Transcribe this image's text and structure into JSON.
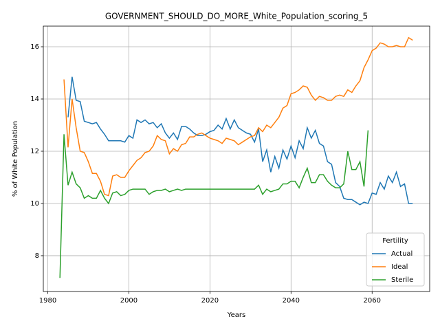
{
  "chart_data": {
    "type": "line",
    "title": "GOVERNMENT_SHOULD_DO_MORE_White_Population_scoring_5",
    "xlabel": "Years",
    "ylabel": "% of White Population",
    "x": [
      1983,
      1984,
      1985,
      1986,
      1987,
      1988,
      1989,
      1990,
      1991,
      1992,
      1993,
      1994,
      1995,
      1996,
      1997,
      1998,
      1999,
      2000,
      2001,
      2002,
      2003,
      2004,
      2005,
      2006,
      2007,
      2008,
      2009,
      2010,
      2011,
      2012,
      2013,
      2014,
      2015,
      2016,
      2017,
      2018,
      2019,
      2020,
      2021,
      2022,
      2023,
      2024,
      2025,
      2026,
      2027,
      2028,
      2029,
      2030,
      2031,
      2032,
      2033,
      2034,
      2035,
      2036,
      2037,
      2038,
      2039,
      2040,
      2041,
      2042,
      2043,
      2044,
      2045,
      2046,
      2047,
      2048,
      2049,
      2050,
      2051,
      2052,
      2053,
      2054,
      2055,
      2056,
      2057,
      2058,
      2059,
      2060,
      2061,
      2062,
      2063,
      2064,
      2065,
      2066,
      2067,
      2068,
      2069,
      2070
    ],
    "series": [
      {
        "name": "Actual",
        "color": "#1f77b4",
        "values": [
          null,
          null,
          13.3,
          14.85,
          13.95,
          13.9,
          13.15,
          13.1,
          13.05,
          13.1,
          12.85,
          12.65,
          12.4,
          12.4,
          12.4,
          12.4,
          12.35,
          12.6,
          12.5,
          13.2,
          13.1,
          13.2,
          13.05,
          13.1,
          12.9,
          13.05,
          12.7,
          12.5,
          12.7,
          12.45,
          12.95,
          12.95,
          12.85,
          12.7,
          12.6,
          12.6,
          12.65,
          12.75,
          12.8,
          13.0,
          12.85,
          13.25,
          12.85,
          13.2,
          12.9,
          12.8,
          12.7,
          12.65,
          12.35,
          12.85,
          11.6,
          12.05,
          11.2,
          11.8,
          11.35,
          12.05,
          11.7,
          12.2,
          11.75,
          12.4,
          12.1,
          12.9,
          12.5,
          12.8,
          12.3,
          12.2,
          11.6,
          11.5,
          10.8,
          10.65,
          10.2,
          10.15,
          10.15,
          10.05,
          9.95,
          10.05,
          10.0,
          10.4,
          10.35,
          10.8,
          10.55,
          11.05,
          10.8,
          11.2,
          10.65,
          10.75,
          10.0,
          10.0
        ]
      },
      {
        "name": "Ideal",
        "color": "#ff7f0e",
        "values": [
          null,
          14.75,
          12.15,
          14.0,
          12.9,
          12.0,
          11.95,
          11.6,
          11.15,
          11.15,
          10.85,
          10.35,
          10.3,
          11.05,
          11.1,
          11.0,
          11.0,
          11.25,
          11.45,
          11.65,
          11.75,
          11.95,
          12.0,
          12.2,
          12.6,
          12.45,
          12.4,
          11.9,
          12.1,
          12.0,
          12.25,
          12.3,
          12.55,
          12.55,
          12.65,
          12.7,
          12.6,
          12.5,
          12.45,
          12.4,
          12.3,
          12.5,
          12.45,
          12.4,
          12.25,
          12.35,
          12.45,
          12.55,
          12.6,
          12.9,
          12.75,
          13.0,
          12.9,
          13.1,
          13.3,
          13.65,
          13.75,
          14.2,
          14.25,
          14.35,
          14.5,
          14.45,
          14.15,
          13.95,
          14.1,
          14.05,
          13.95,
          13.95,
          14.1,
          14.15,
          14.1,
          14.35,
          14.25,
          14.5,
          14.7,
          15.2,
          15.5,
          15.85,
          15.95,
          16.15,
          16.1,
          16.0,
          16.0,
          16.05,
          16.0,
          16.0,
          16.35,
          16.25
        ]
      },
      {
        "name": "Sterile",
        "color": "#2ca02c",
        "values": [
          7.15,
          12.65,
          10.7,
          11.2,
          10.75,
          10.6,
          10.2,
          10.3,
          10.2,
          10.2,
          10.5,
          10.2,
          10.0,
          10.4,
          10.45,
          10.3,
          10.35,
          10.5,
          10.55,
          10.55,
          10.55,
          10.55,
          10.35,
          10.45,
          10.5,
          10.5,
          10.55,
          10.45,
          10.5,
          10.55,
          10.5,
          10.55,
          10.55,
          10.55,
          10.55,
          10.55,
          10.55,
          10.55,
          10.55,
          10.55,
          10.55,
          10.55,
          10.55,
          10.55,
          10.55,
          10.55,
          10.55,
          10.55,
          10.55,
          10.7,
          10.35,
          10.55,
          10.45,
          10.5,
          10.55,
          10.75,
          10.75,
          10.85,
          10.85,
          10.6,
          11.0,
          11.35,
          10.8,
          10.8,
          11.1,
          11.1,
          10.85,
          10.7,
          10.6,
          10.6,
          10.75,
          12.0,
          11.3,
          11.3,
          11.6,
          10.65,
          12.8,
          null,
          null,
          null,
          null,
          null,
          null,
          null,
          null,
          null,
          null,
          null
        ]
      }
    ],
    "xlim": [
      1978.9,
      2074.2
    ],
    "xticks": [
      1980,
      2000,
      2020,
      2040,
      2060
    ],
    "ylim": [
      6.63,
      16.79
    ],
    "yticks": [
      8,
      10,
      12,
      14,
      16
    ],
    "grid": true,
    "legend_title": "Fertility",
    "legend_position": "lower right"
  }
}
